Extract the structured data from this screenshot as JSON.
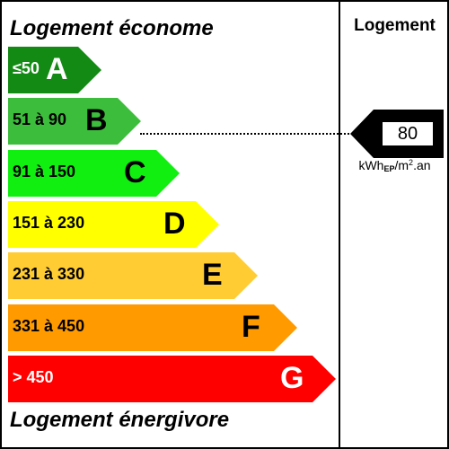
{
  "header": {
    "top_title": "Logement économe",
    "bottom_title": "Logement énergivore",
    "column_title": "Logement"
  },
  "bands": [
    {
      "range": "≤50",
      "letter": "A",
      "color": "#138A13",
      "text_color": "#ffffff"
    },
    {
      "range": "51 à 90",
      "letter": "B",
      "color": "#3CBE3C",
      "text_color": "#000000"
    },
    {
      "range": "91 à 150",
      "letter": "C",
      "color": "#11EF11",
      "text_color": "#000000"
    },
    {
      "range": "151 à 230",
      "letter": "D",
      "color": "#FFFF00",
      "text_color": "#000000"
    },
    {
      "range": "231 à 330",
      "letter": "E",
      "color": "#FFCC33",
      "text_color": "#000000"
    },
    {
      "range": "331 à 450",
      "letter": "F",
      "color": "#FF9A00",
      "text_color": "#000000"
    },
    {
      "range": "> 450",
      "letter": "G",
      "color": "#FF0000",
      "text_color": "#ffffff"
    }
  ],
  "indicator": {
    "value": "80",
    "band_index": 1,
    "unit_main": "kWh",
    "unit_sub": "EP",
    "unit_rest": "/m",
    "unit_sup": "2",
    "unit_tail": ".an"
  }
}
